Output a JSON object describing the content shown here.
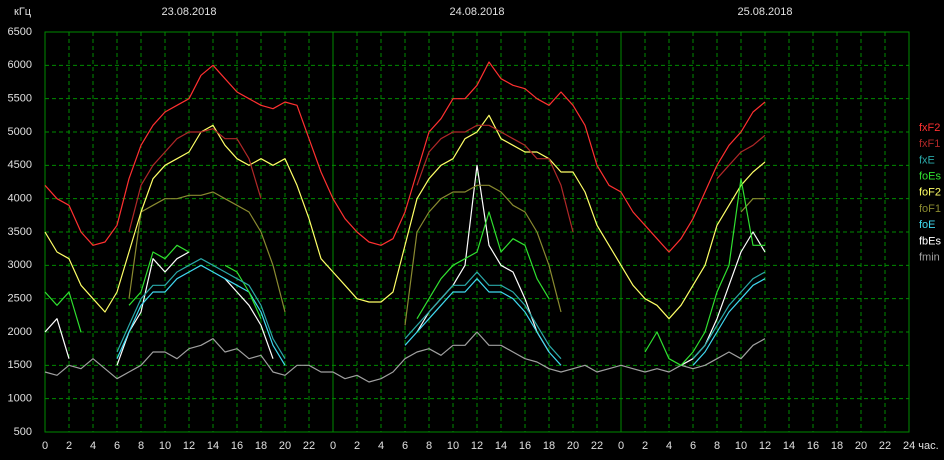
{
  "chart_data": {
    "type": "line",
    "y_label": "кГц",
    "annotations": [
      {
        "x": 12,
        "text": "23.08.2018"
      },
      {
        "x": 36,
        "text": "24.08.2018"
      },
      {
        "x": 60,
        "text": "25.08.2018"
      }
    ],
    "x": [
      0,
      1,
      2,
      3,
      4,
      5,
      6,
      7,
      8,
      9,
      10,
      11,
      12,
      13,
      14,
      15,
      16,
      17,
      18,
      19,
      20,
      21,
      22,
      23,
      24,
      25,
      26,
      27,
      28,
      29,
      30,
      31,
      32,
      33,
      34,
      35,
      36,
      37,
      38,
      39,
      40,
      41,
      42,
      43,
      44,
      45,
      46,
      47,
      48,
      49,
      50,
      51,
      52,
      53,
      54,
      55,
      56,
      57,
      58,
      59,
      60
    ],
    "xlim": [
      0,
      72
    ],
    "xticks": [
      0,
      2,
      4,
      6,
      8,
      10,
      12,
      14,
      16,
      18,
      20,
      22,
      {
        "value": 24,
        "label": "0"
      },
      {
        "value": 26,
        "label": "2"
      },
      {
        "value": 28,
        "label": "4"
      },
      {
        "value": 30,
        "label": "6"
      },
      {
        "value": 32,
        "label": "8"
      },
      {
        "value": 34,
        "label": "10"
      },
      {
        "value": 36,
        "label": "12"
      },
      {
        "value": 38,
        "label": "14"
      },
      {
        "value": 40,
        "label": "16"
      },
      {
        "value": 42,
        "label": "18"
      },
      {
        "value": 44,
        "label": "20"
      },
      {
        "value": 46,
        "label": "22"
      },
      {
        "value": 48,
        "label": "0"
      },
      {
        "value": 50,
        "label": "2"
      },
      {
        "value": 52,
        "label": "4"
      },
      {
        "value": 54,
        "label": "6"
      },
      {
        "value": 56,
        "label": "8"
      },
      {
        "value": 58,
        "label": "10"
      },
      {
        "value": 60,
        "label": "12"
      },
      {
        "value": 62,
        "label": "14"
      },
      {
        "value": 64,
        "label": "16"
      },
      {
        "value": 66,
        "label": "18"
      },
      {
        "value": 68,
        "label": "20"
      },
      {
        "value": 70,
        "label": "22"
      },
      {
        "value": 72,
        "label": "24 час."
      }
    ],
    "ylim": [
      500,
      6500
    ],
    "yticks": [
      500,
      1000,
      1500,
      2000,
      2500,
      3000,
      3500,
      4000,
      4500,
      5000,
      5500,
      6000,
      6500
    ],
    "grid": true,
    "legend": "right",
    "series": [
      {
        "name": "fxF2",
        "color": "#ff3030",
        "values": [
          4200,
          4000,
          3900,
          3500,
          3300,
          3350,
          3600,
          4300,
          4800,
          5100,
          5300,
          5400,
          5500,
          5850,
          6000,
          5800,
          5600,
          5500,
          5400,
          5350,
          5450,
          5400,
          4900,
          4400,
          4000,
          3700,
          3500,
          3350,
          3300,
          3400,
          3800,
          4400,
          5000,
          5200,
          5500,
          5500,
          5700,
          6050,
          5800,
          5700,
          5650,
          5500,
          5400,
          5600,
          5400,
          5100,
          4500,
          4200,
          4100,
          3800,
          3600,
          3400,
          3200,
          3400,
          3700,
          4100,
          4500,
          4800,
          5000,
          5300,
          5450
        ]
      },
      {
        "name": "fxF1",
        "color": "#b02828",
        "values": [
          null,
          null,
          null,
          null,
          null,
          null,
          null,
          3500,
          4200,
          4500,
          4700,
          4900,
          5000,
          5000,
          5050,
          4900,
          4900,
          4600,
          4000,
          null,
          null,
          null,
          null,
          null,
          null,
          null,
          null,
          null,
          null,
          null,
          null,
          4200,
          4700,
          4900,
          5000,
          5000,
          5100,
          5100,
          5000,
          4900,
          4800,
          4600,
          4600,
          4200,
          3500,
          null,
          null,
          null,
          null,
          null,
          null,
          null,
          null,
          null,
          null,
          null,
          4300,
          4500,
          4700,
          4800,
          4950
        ]
      },
      {
        "name": "fxE",
        "color": "#2aa8a8",
        "values": [
          null,
          null,
          null,
          null,
          null,
          null,
          1700,
          2100,
          2500,
          2700,
          2700,
          2900,
          3000,
          3100,
          3000,
          2900,
          2800,
          2700,
          2400,
          1900,
          1600,
          null,
          null,
          null,
          null,
          null,
          null,
          null,
          null,
          null,
          1900,
          2100,
          2300,
          2500,
          2700,
          2700,
          2900,
          2700,
          2700,
          2600,
          2400,
          2100,
          1800,
          1600,
          null,
          null,
          null,
          null,
          null,
          null,
          null,
          null,
          null,
          null,
          1600,
          1800,
          2100,
          2400,
          2600,
          2800,
          2900
        ]
      },
      {
        "name": "foEs",
        "color": "#30e030",
        "values": [
          2600,
          2400,
          2600,
          2000,
          null,
          null,
          null,
          2400,
          2600,
          3200,
          3100,
          3300,
          3200,
          null,
          null,
          3000,
          2900,
          2600,
          2200,
          null,
          null,
          null,
          null,
          null,
          null,
          null,
          null,
          null,
          null,
          null,
          null,
          2200,
          2500,
          2800,
          3000,
          3100,
          3200,
          3800,
          3200,
          3400,
          3300,
          2800,
          2500,
          null,
          null,
          null,
          null,
          null,
          null,
          null,
          1700,
          2000,
          1600,
          1500,
          1700,
          2000,
          2600,
          3000,
          4300,
          3300,
          3300
        ]
      },
      {
        "name": "foF2",
        "color": "#ffff66",
        "values": [
          3500,
          3200,
          3100,
          2700,
          2500,
          2300,
          2600,
          3200,
          3800,
          4300,
          4500,
          4600,
          4700,
          5000,
          5100,
          4800,
          4600,
          4500,
          4600,
          4500,
          4600,
          4200,
          3700,
          3100,
          2900,
          2700,
          2500,
          2450,
          2450,
          2600,
          3300,
          4000,
          4300,
          4500,
          4600,
          4900,
          5000,
          5250,
          4900,
          4800,
          4700,
          4700,
          4600,
          4400,
          4400,
          4100,
          3600,
          3300,
          3000,
          2700,
          2500,
          2400,
          2200,
          2400,
          2700,
          3000,
          3600,
          3900,
          4200,
          4400,
          4550
        ]
      },
      {
        "name": "foF1",
        "color": "#8a8a30",
        "values": [
          null,
          null,
          null,
          null,
          null,
          null,
          null,
          2500,
          3800,
          3900,
          4000,
          4000,
          4050,
          4050,
          4100,
          4000,
          3900,
          3800,
          3500,
          3000,
          2300,
          null,
          null,
          null,
          null,
          null,
          null,
          null,
          null,
          null,
          2100,
          3500,
          3800,
          4000,
          4100,
          4100,
          4200,
          4200,
          4100,
          3900,
          3800,
          3500,
          3000,
          2300,
          null,
          null,
          null,
          null,
          null,
          null,
          null,
          null,
          null,
          null,
          null,
          null,
          null,
          null,
          3800,
          4000,
          4000
        ]
      },
      {
        "name": "foE",
        "color": "#40d8f0",
        "values": [
          null,
          null,
          null,
          null,
          null,
          null,
          1600,
          2000,
          2400,
          2600,
          2600,
          2800,
          2900,
          3000,
          2900,
          2800,
          2700,
          2600,
          2300,
          1800,
          1500,
          null,
          null,
          null,
          null,
          null,
          null,
          null,
          null,
          null,
          1800,
          2000,
          2200,
          2400,
          2600,
          2600,
          2800,
          2600,
          2600,
          2500,
          2300,
          2000,
          1700,
          1500,
          null,
          null,
          null,
          null,
          null,
          null,
          null,
          null,
          null,
          null,
          1500,
          1700,
          2000,
          2300,
          2500,
          2700,
          2800
        ]
      },
      {
        "name": "fbEs",
        "color": "#ffffff",
        "values": [
          2000,
          2200,
          1600,
          null,
          null,
          null,
          1500,
          2000,
          2300,
          3100,
          2900,
          3100,
          3200,
          null,
          null,
          2800,
          2600,
          2400,
          2100,
          1600,
          null,
          null,
          null,
          null,
          null,
          null,
          null,
          null,
          null,
          null,
          null,
          2000,
          2300,
          2500,
          2700,
          3000,
          4500,
          3300,
          3000,
          2900,
          2500,
          2000,
          1700,
          null,
          null,
          null,
          null,
          null,
          null,
          null,
          null,
          null,
          null,
          1500,
          1600,
          1800,
          2200,
          2700,
          3200,
          3500,
          3200
        ]
      },
      {
        "name": "fmin",
        "color": "#a0a0a0",
        "values": [
          1400,
          1350,
          1500,
          1450,
          1600,
          1450,
          1300,
          1400,
          1500,
          1700,
          1700,
          1600,
          1750,
          1800,
          1900,
          1700,
          1750,
          1600,
          1650,
          1400,
          1350,
          1500,
          1500,
          1400,
          1400,
          1300,
          1350,
          1250,
          1300,
          1400,
          1600,
          1700,
          1750,
          1650,
          1800,
          1800,
          2000,
          1800,
          1800,
          1700,
          1600,
          1550,
          1450,
          1400,
          1450,
          1500,
          1400,
          1450,
          1500,
          1450,
          1400,
          1450,
          1400,
          1500,
          1450,
          1500,
          1600,
          1700,
          1600,
          1800,
          1900
        ]
      }
    ]
  }
}
